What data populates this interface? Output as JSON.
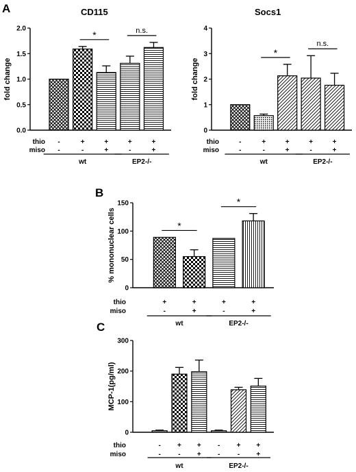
{
  "colors": {
    "ink": "#000000",
    "light_bar": "#e2e2e2",
    "background": "#ffffff"
  },
  "charts": [
    {
      "panel": "A",
      "title": "CD115",
      "ylabel": "fold change",
      "yticks": [
        "0.0",
        "0.5",
        "1.0",
        "1.5",
        "2.0"
      ],
      "group_row_labels": [
        "thio",
        "miso"
      ],
      "condition_marks": [
        [
          "-",
          "+",
          "+",
          "+",
          "+"
        ],
        [
          "-",
          "-",
          "+",
          "-",
          "+"
        ]
      ],
      "groups": [
        {
          "label": "wt"
        },
        {
          "label": "EP2-/-"
        }
      ],
      "significance": [
        {
          "label": "*"
        },
        {
          "label": "n.s."
        }
      ]
    },
    {
      "panel": "",
      "title": "Socs1",
      "ylabel": "fold change",
      "yticks": [
        "0",
        "1",
        "2",
        "3",
        "4"
      ],
      "group_row_labels": [
        "thio",
        "miso"
      ],
      "condition_marks": [
        [
          "-",
          "+",
          "+",
          "+",
          "+"
        ],
        [
          "-",
          "-",
          "+",
          "-",
          "+"
        ]
      ],
      "groups": [
        {
          "label": "wt"
        },
        {
          "label": "EP2-/-"
        }
      ],
      "significance": [
        {
          "label": "*"
        },
        {
          "label": "n.s."
        }
      ]
    },
    {
      "panel": "B",
      "title": "",
      "ylabel": "% mononuclear cells",
      "yticks": [
        "0",
        "50",
        "100",
        "150"
      ],
      "group_row_labels": [
        "thio",
        "miso"
      ],
      "condition_marks": [
        [
          "+",
          "+",
          "+",
          "+"
        ],
        [
          "-",
          "+",
          "-",
          "+"
        ]
      ],
      "groups": [
        {
          "label": "wt"
        },
        {
          "label": "EP2-/-"
        }
      ],
      "significance": [
        {
          "label": "*"
        },
        {
          "label": "*"
        }
      ]
    },
    {
      "panel": "C",
      "title": "",
      "ylabel": "MCP-1(pg/ml)",
      "yticks": [
        "0",
        "100",
        "200",
        "300"
      ],
      "group_row_labels": [
        "thio",
        "miso"
      ],
      "condition_marks": [
        [
          "-",
          "+",
          "+",
          "-",
          "+",
          "+"
        ],
        [
          "-",
          "-",
          "+",
          "-",
          "-",
          "+"
        ]
      ],
      "groups": [
        {
          "label": "wt"
        },
        {
          "label": "EP2-/-"
        }
      ],
      "significance": []
    }
  ],
  "chart_data": [
    {
      "type": "bar",
      "title": "CD115",
      "ylabel": "fold change",
      "ylim": [
        0,
        2
      ],
      "values": [
        1.0,
        1.59,
        1.13,
        1.31,
        1.62
      ],
      "errors": [
        0.0,
        0.05,
        0.13,
        0.14,
        0.1
      ],
      "patterns": [
        "cross",
        "check",
        "hline",
        "hline",
        "hline"
      ],
      "group_spans": [
        [
          0,
          2
        ],
        [
          3,
          4
        ]
      ],
      "sig_pairs": [
        [
          1,
          2
        ],
        [
          3,
          4
        ]
      ],
      "legend": "none",
      "grid": false
    },
    {
      "type": "bar",
      "title": "Socs1",
      "ylabel": "fold change",
      "ylim": [
        0,
        4
      ],
      "values": [
        1.0,
        0.57,
        2.13,
        2.04,
        1.76
      ],
      "errors": [
        0.0,
        0.06,
        0.45,
        0.88,
        0.47
      ],
      "patterns": [
        "cross",
        "dots",
        "diag",
        "diag",
        "diag"
      ],
      "group_spans": [
        [
          0,
          2
        ],
        [
          3,
          4
        ]
      ],
      "sig_pairs": [
        [
          1,
          2
        ],
        [
          3,
          4
        ]
      ],
      "legend": "none",
      "grid": false
    },
    {
      "type": "bar",
      "title": "",
      "ylabel": "% mononuclear cells",
      "ylim": [
        0,
        150
      ],
      "values": [
        89,
        55,
        87,
        118
      ],
      "errors": [
        0,
        12,
        0,
        13
      ],
      "patterns": [
        "cross",
        "check",
        "hline",
        "vline"
      ],
      "group_spans": [
        [
          0,
          1
        ],
        [
          2,
          3
        ]
      ],
      "sig_pairs": [
        [
          0,
          1
        ],
        [
          2,
          3
        ]
      ],
      "legend": "none",
      "grid": false
    },
    {
      "type": "bar",
      "title": "",
      "ylabel": "MCP-1(pg/ml)",
      "ylim": [
        0,
        300
      ],
      "values": [
        5,
        190,
        198,
        5,
        139,
        151
      ],
      "errors": [
        2,
        22,
        38,
        2,
        8,
        25
      ],
      "patterns": [
        "fine",
        "check",
        "hline",
        "fine",
        "diag",
        "hline"
      ],
      "group_spans": [
        [
          0,
          2
        ],
        [
          3,
          5
        ]
      ],
      "sig_pairs": [],
      "legend": "none",
      "grid": false
    }
  ]
}
